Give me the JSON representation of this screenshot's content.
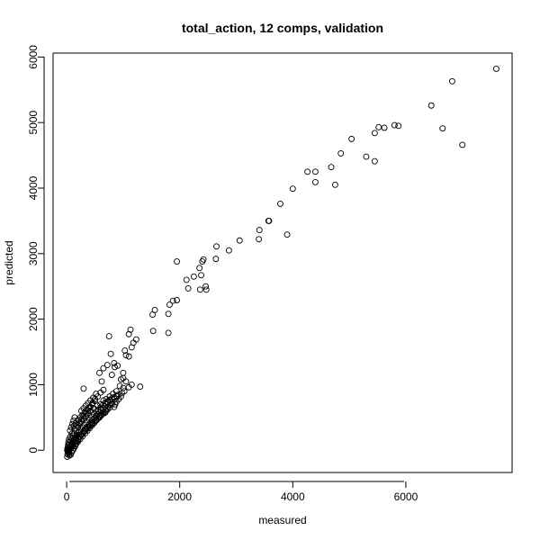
{
  "chart_data": {
    "type": "scatter",
    "title": "total_action, 12 comps, validation",
    "xlabel": "measured",
    "ylabel": "predicted",
    "xlim": [
      -240,
      7880
    ],
    "ylim": [
      -340,
      6060
    ],
    "xticks": [
      0,
      2000,
      4000,
      6000
    ],
    "yticks": [
      0,
      1000,
      2000,
      3000,
      4000,
      5000,
      6000
    ],
    "xtick_labels": [
      "0",
      "2000",
      "4000",
      "6000"
    ],
    "ytick_labels": [
      "0",
      "1000",
      "2000",
      "3000",
      "4000",
      "5000",
      "6000"
    ],
    "grid": false,
    "marker": "open-circle",
    "marker_color": "#000000",
    "points": [
      [
        7600,
        5820
      ],
      [
        6820,
        5630
      ],
      [
        6450,
        5260
      ],
      [
        6650,
        4910
      ],
      [
        7000,
        4660
      ],
      [
        5800,
        4960
      ],
      [
        5870,
        4950
      ],
      [
        5620,
        4920
      ],
      [
        5520,
        4930
      ],
      [
        5450,
        4840
      ],
      [
        5300,
        4480
      ],
      [
        5450,
        4410
      ],
      [
        5040,
        4750
      ],
      [
        4850,
        4530
      ],
      [
        4680,
        4320
      ],
      [
        4750,
        4050
      ],
      [
        4400,
        4250
      ],
      [
        4260,
        4250
      ],
      [
        4400,
        4090
      ],
      [
        4000,
        3990
      ],
      [
        3780,
        3760
      ],
      [
        3570,
        3500
      ],
      [
        3580,
        3500
      ],
      [
        3900,
        3290
      ],
      [
        3410,
        3360
      ],
      [
        3400,
        3220
      ],
      [
        3060,
        3200
      ],
      [
        2870,
        3050
      ],
      [
        2650,
        3110
      ],
      [
        2640,
        2920
      ],
      [
        2400,
        2880
      ],
      [
        2420,
        2910
      ],
      [
        2350,
        2780
      ],
      [
        2250,
        2650
      ],
      [
        2380,
        2670
      ],
      [
        2120,
        2600
      ],
      [
        2150,
        2470
      ],
      [
        2360,
        2450
      ],
      [
        2470,
        2450
      ],
      [
        2460,
        2500
      ],
      [
        1950,
        2880
      ],
      [
        1880,
        2280
      ],
      [
        1950,
        2290
      ],
      [
        1820,
        2220
      ],
      [
        1800,
        2080
      ],
      [
        1560,
        2140
      ],
      [
        1520,
        2070
      ],
      [
        1530,
        1820
      ],
      [
        1800,
        1790
      ],
      [
        1130,
        1840
      ],
      [
        1100,
        1770
      ],
      [
        1180,
        1640
      ],
      [
        1230,
        1690
      ],
      [
        1150,
        1570
      ],
      [
        1030,
        1520
      ],
      [
        1100,
        1430
      ],
      [
        1050,
        1450
      ],
      [
        1300,
        970
      ],
      [
        750,
        1740
      ],
      [
        780,
        1470
      ],
      [
        720,
        1300
      ],
      [
        840,
        1330
      ],
      [
        850,
        1270
      ],
      [
        900,
        1290
      ],
      [
        800,
        1150
      ],
      [
        650,
        1250
      ],
      [
        580,
        1180
      ],
      [
        960,
        1080
      ],
      [
        1000,
        1100
      ],
      [
        620,
        1050
      ],
      [
        940,
        980
      ],
      [
        1000,
        950
      ],
      [
        1100,
        960
      ],
      [
        880,
        900
      ],
      [
        300,
        940
      ],
      [
        820,
        860
      ],
      [
        760,
        820
      ],
      [
        700,
        780
      ],
      [
        650,
        760
      ],
      [
        600,
        700
      ],
      [
        540,
        680
      ],
      [
        480,
        640
      ],
      [
        420,
        600
      ],
      [
        380,
        560
      ],
      [
        340,
        520
      ],
      [
        300,
        480
      ],
      [
        260,
        440
      ],
      [
        230,
        400
      ],
      [
        200,
        350
      ],
      [
        170,
        300
      ],
      [
        140,
        260
      ],
      [
        110,
        220
      ],
      [
        90,
        180
      ],
      [
        70,
        140
      ],
      [
        50,
        100
      ],
      [
        40,
        60
      ],
      [
        30,
        20
      ],
      [
        20,
        -20
      ],
      [
        15,
        -60
      ],
      [
        10,
        -100
      ],
      [
        60,
        30
      ],
      [
        80,
        70
      ],
      [
        100,
        110
      ],
      [
        120,
        150
      ],
      [
        150,
        190
      ],
      [
        180,
        230
      ],
      [
        210,
        270
      ],
      [
        250,
        310
      ],
      [
        280,
        350
      ],
      [
        320,
        390
      ],
      [
        360,
        430
      ],
      [
        400,
        470
      ],
      [
        440,
        510
      ],
      [
        480,
        550
      ],
      [
        520,
        590
      ],
      [
        560,
        620
      ],
      [
        600,
        650
      ],
      [
        640,
        690
      ],
      [
        680,
        720
      ],
      [
        720,
        740
      ],
      [
        760,
        770
      ],
      [
        800,
        790
      ],
      [
        840,
        810
      ],
      [
        880,
        830
      ],
      [
        920,
        850
      ],
      [
        700,
        600
      ],
      [
        650,
        560
      ],
      [
        600,
        520
      ],
      [
        550,
        480
      ],
      [
        500,
        440
      ],
      [
        450,
        400
      ],
      [
        400,
        360
      ],
      [
        350,
        320
      ],
      [
        300,
        280
      ],
      [
        250,
        240
      ],
      [
        200,
        190
      ],
      [
        150,
        140
      ],
      [
        100,
        90
      ],
      [
        70,
        40
      ],
      [
        40,
        0
      ],
      [
        800,
        700
      ],
      [
        760,
        650
      ],
      [
        720,
        620
      ],
      [
        680,
        570
      ],
      [
        620,
        540
      ],
      [
        580,
        500
      ],
      [
        520,
        460
      ],
      [
        460,
        420
      ],
      [
        420,
        380
      ],
      [
        360,
        340
      ],
      [
        320,
        290
      ],
      [
        270,
        250
      ],
      [
        220,
        210
      ],
      [
        170,
        170
      ],
      [
        130,
        120
      ],
      [
        500,
        750
      ],
      [
        450,
        700
      ],
      [
        400,
        650
      ],
      [
        360,
        620
      ],
      [
        320,
        580
      ],
      [
        280,
        540
      ],
      [
        240,
        500
      ],
      [
        200,
        460
      ],
      [
        160,
        410
      ],
      [
        130,
        370
      ],
      [
        550,
        820
      ],
      [
        600,
        880
      ],
      [
        650,
        920
      ],
      [
        520,
        860
      ],
      [
        470,
        800
      ],
      [
        420,
        760
      ],
      [
        380,
        720
      ],
      [
        340,
        680
      ],
      [
        300,
        640
      ],
      [
        260,
        600
      ],
      [
        880,
        740
      ],
      [
        920,
        780
      ],
      [
        960,
        820
      ],
      [
        860,
        700
      ],
      [
        840,
        660
      ],
      [
        90,
        250
      ],
      [
        60,
        200
      ],
      [
        40,
        160
      ],
      [
        30,
        120
      ],
      [
        25,
        80
      ],
      [
        120,
        60
      ],
      [
        160,
        90
      ],
      [
        200,
        130
      ],
      [
        240,
        170
      ],
      [
        280,
        210
      ],
      [
        330,
        260
      ],
      [
        370,
        300
      ],
      [
        410,
        340
      ],
      [
        450,
        380
      ],
      [
        490,
        420
      ],
      [
        530,
        460
      ],
      [
        570,
        500
      ],
      [
        610,
        540
      ],
      [
        650,
        580
      ],
      [
        690,
        620
      ],
      [
        730,
        660
      ],
      [
        770,
        700
      ],
      [
        810,
        740
      ],
      [
        850,
        780
      ],
      [
        890,
        820
      ],
      [
        20,
        40
      ],
      [
        35,
        -40
      ],
      [
        50,
        -80
      ],
      [
        70,
        -70
      ],
      [
        90,
        -30
      ],
      [
        110,
        0
      ],
      [
        130,
        30
      ],
      [
        150,
        60
      ],
      [
        170,
        100
      ],
      [
        190,
        140
      ],
      [
        210,
        170
      ],
      [
        230,
        210
      ],
      [
        260,
        230
      ],
      [
        290,
        260
      ],
      [
        310,
        300
      ],
      [
        340,
        330
      ],
      [
        370,
        360
      ],
      [
        400,
        390
      ],
      [
        430,
        430
      ],
      [
        460,
        460
      ],
      [
        490,
        490
      ],
      [
        520,
        520
      ],
      [
        550,
        550
      ],
      [
        580,
        580
      ],
      [
        610,
        610
      ],
      [
        640,
        640
      ],
      [
        670,
        670
      ],
      [
        700,
        700
      ],
      [
        730,
        730
      ],
      [
        760,
        760
      ],
      [
        140,
        320
      ],
      [
        180,
        380
      ],
      [
        220,
        420
      ],
      [
        260,
        470
      ],
      [
        300,
        520
      ],
      [
        340,
        560
      ],
      [
        380,
        610
      ],
      [
        420,
        660
      ],
      [
        460,
        720
      ],
      [
        500,
        780
      ],
      [
        1150,
        1000
      ],
      [
        1000,
        1180
      ],
      [
        1050,
        1050
      ],
      [
        980,
        870
      ],
      [
        1020,
        900
      ],
      [
        60,
        300
      ],
      [
        80,
        350
      ],
      [
        100,
        400
      ],
      [
        120,
        450
      ],
      [
        140,
        500
      ],
      [
        10,
        0
      ],
      [
        15,
        30
      ],
      [
        25,
        -30
      ],
      [
        45,
        -60
      ],
      [
        55,
        10
      ],
      [
        75,
        50
      ],
      [
        95,
        80
      ],
      [
        115,
        120
      ],
      [
        135,
        160
      ],
      [
        155,
        200
      ]
    ]
  }
}
